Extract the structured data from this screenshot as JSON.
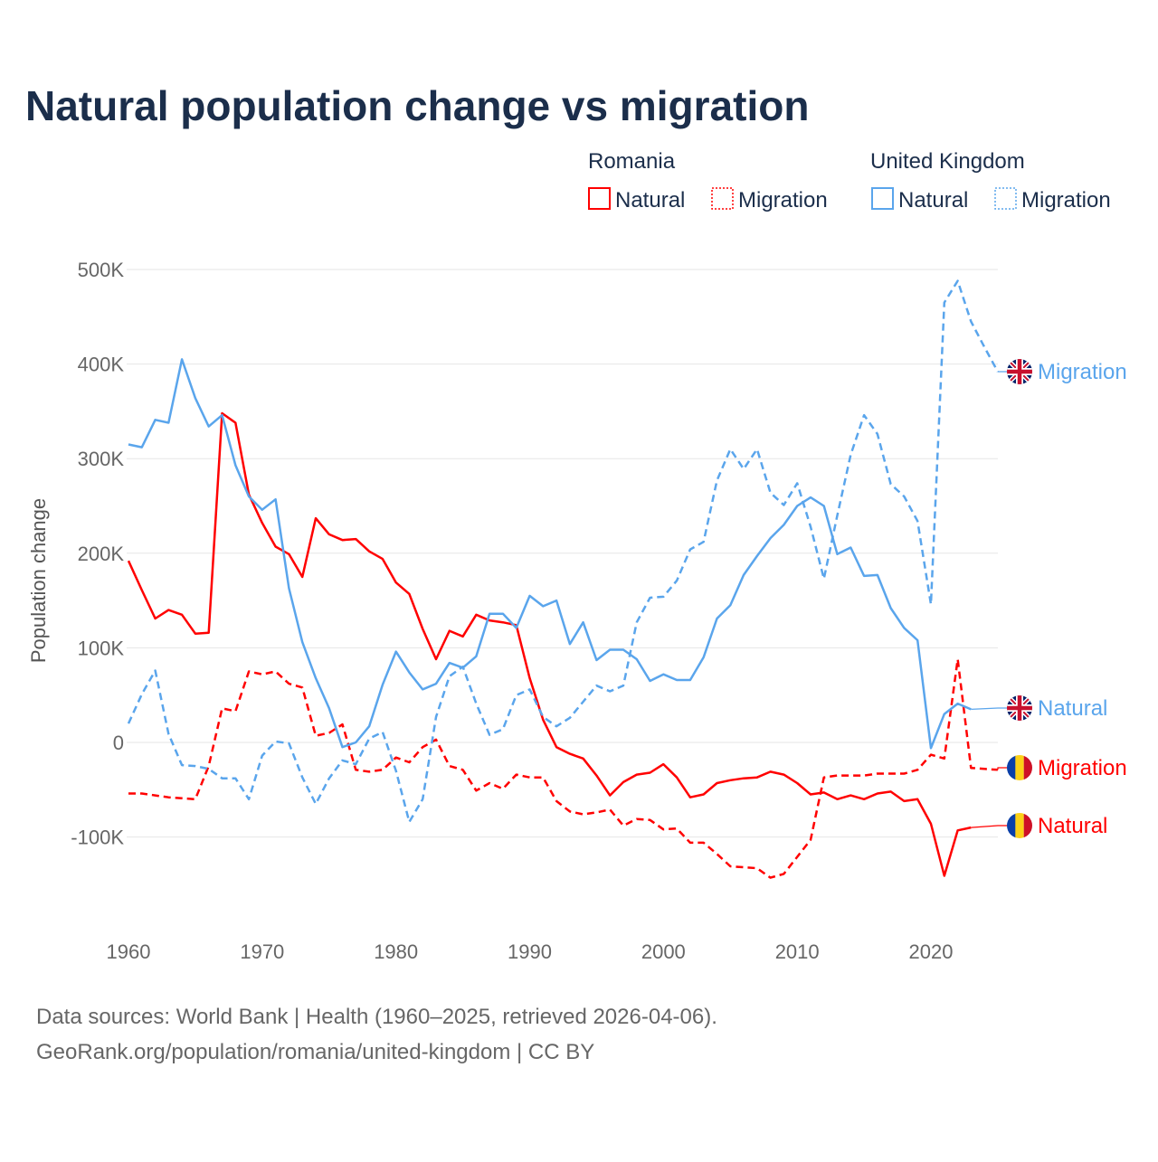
{
  "chart_data": {
    "type": "line",
    "title": "Natural population change vs migration",
    "ylabel": "Population change",
    "xlabel": "",
    "xlim": [
      1960,
      2025
    ],
    "ylim": [
      -150000,
      500000
    ],
    "x_ticks": [
      "1960",
      "1970",
      "1980",
      "1990",
      "2000",
      "2010",
      "2020"
    ],
    "y_ticks": [
      {
        "v": 500,
        "label": "500K"
      },
      {
        "v": 400,
        "label": "400K"
      },
      {
        "v": 300,
        "label": "300K"
      },
      {
        "v": 200,
        "label": "200K"
      },
      {
        "v": 100,
        "label": "100K"
      },
      {
        "v": 0,
        "label": "0"
      },
      {
        "v": -100,
        "label": "-100K"
      }
    ],
    "grid": true,
    "units": "thousands",
    "legend": {
      "placement": "top-right",
      "groups": [
        {
          "country": "Romania",
          "items": [
            "Natural",
            "Migration"
          ]
        },
        {
          "country": "United Kingdom",
          "items": [
            "Natural",
            "Migration"
          ]
        }
      ]
    },
    "series": [
      {
        "name": "Romania Natural",
        "label": "Natural",
        "country": "Romania",
        "color": "#ff0000",
        "dashed": false,
        "start_year": 1960,
        "values": [
          192,
          161,
          131,
          140,
          135,
          115,
          116,
          348,
          338,
          262,
          232,
          207,
          199,
          175,
          237,
          220,
          214,
          215,
          202,
          194,
          169,
          157,
          120,
          88,
          118,
          112,
          135,
          129,
          127,
          124,
          68,
          24,
          -5,
          -12,
          -17,
          -35,
          -56,
          -42,
          -34,
          -32,
          -23,
          -37,
          -58,
          -55,
          -43,
          -40,
          -38,
          -37,
          -31,
          -34,
          -43,
          -55,
          -53,
          -60,
          -56,
          -60,
          -54,
          -52,
          -62,
          -60,
          -86,
          -141,
          -93,
          -90
        ]
      },
      {
        "name": "Romania Migration",
        "label": "Migration",
        "country": "Romania",
        "color": "#ff0000",
        "dashed": true,
        "start_year": 1960,
        "values": [
          -54,
          -54,
          -56,
          -58,
          -59,
          -60,
          -25,
          36,
          33,
          75,
          72,
          75,
          62,
          58,
          7,
          10,
          19,
          -29,
          -31,
          -29,
          -16,
          -21,
          -5,
          3,
          -25,
          -29,
          -51,
          -43,
          -49,
          -34,
          -37,
          -37,
          -62,
          -73,
          -76,
          -74,
          -71,
          -88,
          -81,
          -82,
          -92,
          -91,
          -106,
          -106,
          -118,
          -131,
          -132,
          -133,
          -143,
          -139,
          -121,
          -103,
          -37,
          -35,
          -35,
          -35,
          -33,
          -33,
          -33,
          -29,
          -13,
          -17,
          88,
          -27,
          -28,
          -29
        ]
      },
      {
        "name": "United Kingdom Natural",
        "label": "Natural",
        "country": "United Kingdom",
        "color": "#5aa5ec",
        "dashed": false,
        "start_year": 1960,
        "values": [
          315,
          312,
          341,
          338,
          405,
          364,
          334,
          346,
          293,
          260,
          246,
          257,
          163,
          106,
          68,
          36,
          -5,
          0,
          17,
          61,
          96,
          74,
          56,
          62,
          84,
          79,
          91,
          136,
          136,
          121,
          155,
          144,
          150,
          104,
          127,
          87,
          98,
          98,
          88,
          65,
          72,
          66,
          66,
          90,
          131,
          145,
          177,
          197,
          216,
          230,
          250,
          259,
          250,
          199,
          206,
          176,
          177,
          142,
          121,
          108,
          -6,
          30,
          41,
          35
        ]
      },
      {
        "name": "United Kingdom Migration",
        "label": "Migration",
        "country": "United Kingdom",
        "color": "#5aa5ec",
        "dashed": true,
        "start_year": 1960,
        "values": [
          20,
          51,
          76,
          9,
          -24,
          -25,
          -28,
          -38,
          -38,
          -60,
          -14,
          1,
          -1,
          -37,
          -65,
          -38,
          -19,
          -23,
          4,
          11,
          -30,
          -84,
          -60,
          27,
          70,
          80,
          41,
          8,
          14,
          50,
          56,
          27,
          17,
          26,
          43,
          60,
          54,
          60,
          127,
          153,
          154,
          171,
          204,
          212,
          277,
          310,
          289,
          310,
          264,
          251,
          274,
          228,
          173,
          240,
          304,
          346,
          326,
          273,
          260,
          234,
          146,
          465,
          488,
          445,
          418,
          392
        ]
      }
    ],
    "end_labels": [
      {
        "series": 3,
        "text": "Migration",
        "flag": "uk-flag"
      },
      {
        "series": 2,
        "text": "Natural",
        "flag": "uk-flag"
      },
      {
        "series": 1,
        "text": "Migration",
        "flag": "romania-flag"
      },
      {
        "series": 0,
        "text": "Natural",
        "flag": "romania-flag"
      }
    ]
  },
  "footer": {
    "line1": "Data sources: World Bank | Health (1960–2025, retrieved 2026-04-06).",
    "line2": "GeoRank.org/population/romania/united-kingdom | CC BY"
  }
}
